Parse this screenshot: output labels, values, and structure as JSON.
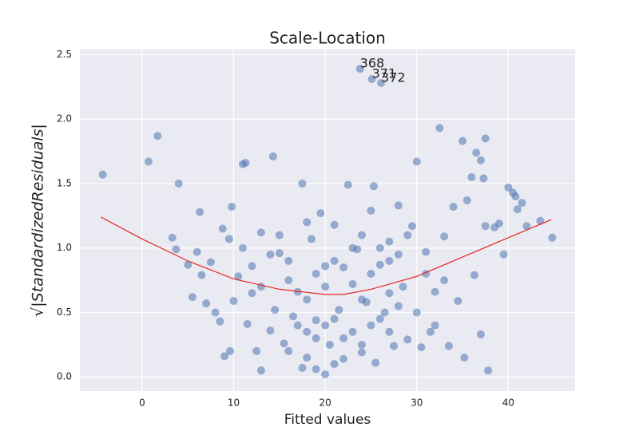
{
  "chart_data": {
    "type": "scatter",
    "title": "Scale-Location",
    "x_label": "Fitted values",
    "y_label": "√|StandardizedResiduals|",
    "x": [
      -4.3,
      0.7,
      1.7,
      3.3,
      3.7,
      4,
      5,
      5.5,
      6,
      6.3,
      6.5,
      7,
      7.5,
      8,
      8.5,
      8.8,
      9,
      9.5,
      9.8,
      10,
      9.6,
      10.5,
      11,
      11.3,
      11.5,
      12,
      12.5,
      13,
      13,
      14,
      14.3,
      14.5,
      15,
      15.5,
      16,
      16.5,
      17,
      17.5,
      17.5,
      18,
      18.5,
      19,
      19,
      19.5,
      20,
      20,
      20.5,
      21,
      21.5,
      22,
      22.5,
      23,
      23.5,
      24,
      24.5,
      25,
      25.3,
      25.5,
      26,
      26.5,
      27,
      27.5,
      28,
      28.5,
      29,
      29.5,
      30,
      30.5,
      31,
      31.5,
      32,
      32.5,
      33,
      33.5,
      34,
      34.5,
      35,
      35.2,
      35.5,
      36,
      36.3,
      36.5,
      37,
      37,
      37.3,
      37.5,
      37.5,
      37.8,
      38.5,
      39,
      39.5,
      40,
      40.5,
      40.8,
      41,
      41.5,
      42,
      43.5,
      44.8,
      23.8,
      25.1,
      26.1,
      18,
      19,
      20,
      21,
      22,
      23,
      24,
      25,
      26,
      27,
      28,
      29,
      15,
      16,
      17,
      18,
      19,
      20,
      21,
      22,
      23,
      24,
      25,
      26,
      27,
      28,
      30,
      31,
      32,
      33,
      13,
      14,
      12,
      11,
      16,
      18,
      21,
      24,
      27
    ],
    "values": [
      1.57,
      1.67,
      1.87,
      1.08,
      0.99,
      1.5,
      0.87,
      0.62,
      0.97,
      1.28,
      0.79,
      0.57,
      0.89,
      0.5,
      0.43,
      1.15,
      0.16,
      1.07,
      1.32,
      0.59,
      0.2,
      0.78,
      1.65,
      1.66,
      0.41,
      0.86,
      0.2,
      0.05,
      1.12,
      0.36,
      1.71,
      0.52,
      0.96,
      0.26,
      0.75,
      0.47,
      0.66,
      0.07,
      1.5,
      0.35,
      1.07,
      0.06,
      0.44,
      1.27,
      0.02,
      0.86,
      0.25,
      1.18,
      0.52,
      0.14,
      1.49,
      0.72,
      0.99,
      0.19,
      0.58,
      1.29,
      1.48,
      0.11,
      0.87,
      0.5,
      1.05,
      0.24,
      1.33,
      0.7,
      0.29,
      1.17,
      1.67,
      0.23,
      0.97,
      0.35,
      0.66,
      1.93,
      1.09,
      0.24,
      1.32,
      0.59,
      1.83,
      0.15,
      1.37,
      1.55,
      0.79,
      1.74,
      0.33,
      1.68,
      1.54,
      1.85,
      1.17,
      0.05,
      1.16,
      1.19,
      0.95,
      1.47,
      1.43,
      1.4,
      1.3,
      1.35,
      1.17,
      1.21,
      1.08,
      2.39,
      2.31,
      2.28,
      0.6,
      0.8,
      0.4,
      0.9,
      0.3,
      1.0,
      0.6,
      0.8,
      0.45,
      0.9,
      0.55,
      1.1,
      1.1,
      0.9,
      0.4,
      1.2,
      0.3,
      0.7,
      0.45,
      0.85,
      0.35,
      1.1,
      0.4,
      1.0,
      0.65,
      0.95,
      0.5,
      0.8,
      0.4,
      0.75,
      0.7,
      0.95,
      0.65,
      1.0,
      0.2,
      0.15,
      0.1,
      0.25,
      0.35
    ],
    "color": "#4c72b0",
    "trend_line": {
      "color": "#e8251f",
      "x": [
        -4.5,
        0,
        5,
        10,
        15,
        20,
        22,
        25,
        30,
        35,
        40,
        44.7
      ],
      "values": [
        1.24,
        1.07,
        0.9,
        0.76,
        0.68,
        0.64,
        0.64,
        0.68,
        0.78,
        0.93,
        1.08,
        1.22
      ]
    },
    "annotations": [
      {
        "text": "368",
        "x": 23.8,
        "y": 2.39
      },
      {
        "text": "371",
        "x": 25.1,
        "y": 2.31
      },
      {
        "text": "372",
        "x": 26.1,
        "y": 2.28
      }
    ],
    "xlim": [
      -6.8,
      47.3
    ],
    "ylim": [
      -0.11,
      2.54
    ],
    "xticks": [
      0,
      10,
      20,
      30,
      40
    ],
    "yticks": [
      {
        "value": 0,
        "label": "0.0"
      },
      {
        "value": 0.5,
        "label": "0.5"
      },
      {
        "value": 1,
        "label": "1.0"
      },
      {
        "value": 1.5,
        "label": "1.5"
      },
      {
        "value": 2,
        "label": "2.0"
      },
      {
        "value": 2.5,
        "label": "2.5"
      }
    ],
    "grid": true
  }
}
